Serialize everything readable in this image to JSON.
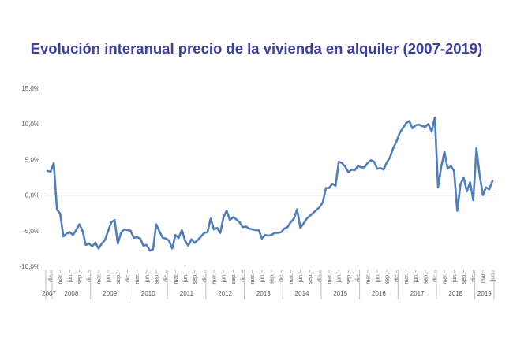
{
  "chart_data": {
    "type": "line",
    "title": "Evolución interanual precio de la vivienda en alquiler (2007-2019)",
    "xlabel": "",
    "ylabel": "",
    "ylim": [
      -10,
      15
    ],
    "yticks": [
      "15,0%",
      "10,0%",
      "5,0%",
      "0,0%",
      "-5,0%",
      "-10,0%"
    ],
    "ytick_values": [
      15,
      10,
      5,
      0,
      -5,
      -10
    ],
    "grid": false,
    "legend": "none",
    "colors": {
      "line": "#4f7ebc",
      "axis": "#bfbfbf",
      "title": "#3a3fa6"
    },
    "month_labels": [
      "dic.",
      "mar.",
      "jun.",
      "sep.",
      "dic.",
      "mar.",
      "jun.",
      "sep.",
      "dic.",
      "mar.",
      "jun.",
      "sep.",
      "dic.",
      "mar.",
      "jun.",
      "sep.",
      "dic.",
      "mar.",
      "jun.",
      "sep.",
      "dic.",
      "mar.",
      "jun.",
      "sep.",
      "dic.",
      "mar.",
      "jun.",
      "sep.",
      "dic.",
      "mar.",
      "jun.",
      "sep.",
      "dic.",
      "mar.",
      "jun.",
      "sep.",
      "dic.",
      "mar.",
      "jun.",
      "sep.",
      "dic.",
      "mar.",
      "jun.",
      "sep.",
      "dic.",
      "mar",
      "jun"
    ],
    "year_labels": [
      "2007",
      "2008",
      "2009",
      "2010",
      "2011",
      "2012",
      "2013",
      "2014",
      "2015",
      "2016",
      "2017",
      "2018",
      "2019"
    ],
    "series": [
      {
        "values": [
          3.4,
          3.3,
          4.5,
          -2.0,
          -2.6,
          -5.8,
          -5.4,
          -5.2,
          -5.6,
          -4.9,
          -4.1,
          -5.0,
          -7.0,
          -6.8,
          -7.2,
          -6.7,
          -7.5,
          -6.8,
          -6.3,
          -5.0,
          -3.8,
          -3.5,
          -6.8,
          -5.3,
          -4.8,
          -4.9,
          -5.0,
          -6.0,
          -5.9,
          -6.1,
          -7.1,
          -7.0,
          -7.8,
          -7.6,
          -4.1,
          -5.1,
          -6.0,
          -6.1,
          -6.4,
          -7.5,
          -5.6,
          -6.0,
          -4.9,
          -6.4,
          -7.1,
          -6.2,
          -6.7,
          -6.3,
          -5.8,
          -5.3,
          -5.2,
          -3.3,
          -4.8,
          -4.6,
          -5.3,
          -3.1,
          -2.2,
          -3.5,
          -3.1,
          -3.4,
          -3.8,
          -4.5,
          -4.4,
          -4.7,
          -4.8,
          -4.9,
          -4.9,
          -6.1,
          -5.6,
          -5.7,
          -5.6,
          -5.3,
          -5.3,
          -5.2,
          -4.7,
          -4.5,
          -3.8,
          -3.3,
          -2.0,
          -4.6,
          -4.0,
          -3.3,
          -2.9,
          -2.5,
          -2.1,
          -1.7,
          -1.0,
          1.0,
          1.0,
          1.6,
          1.3,
          4.7,
          4.5,
          4.0,
          3.2,
          3.6,
          3.5,
          4.1,
          3.9,
          3.9,
          4.5,
          4.9,
          4.7,
          3.7,
          3.8,
          3.6,
          4.6,
          5.3,
          6.6,
          7.5,
          8.7,
          9.4,
          10.1,
          10.4,
          9.4,
          9.8,
          9.9,
          9.7,
          9.6,
          10.0,
          8.9,
          10.9,
          1.1,
          4.0,
          6.1,
          3.7,
          4.1,
          3.4,
          -2.2,
          1.5,
          2.5,
          0.5,
          1.8,
          -0.7,
          6.6,
          2.8,
          0.0,
          1.1,
          0.8,
          2.0
        ]
      }
    ]
  }
}
